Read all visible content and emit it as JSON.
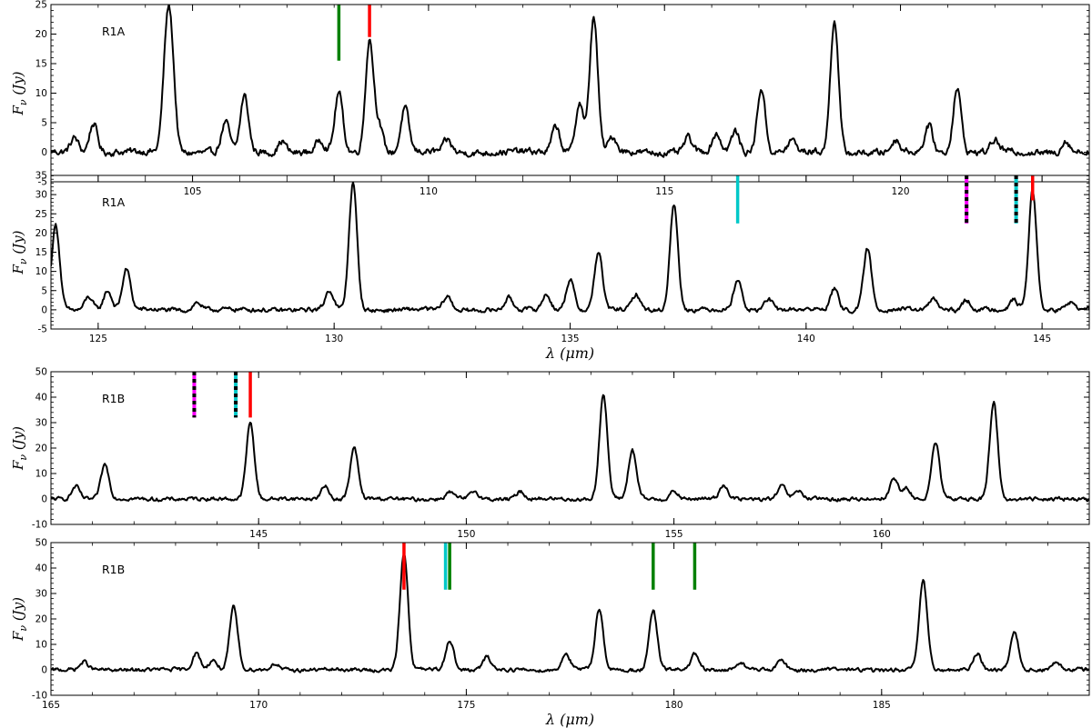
{
  "chart_data": [
    {
      "type": "line",
      "panel_label": "R1A",
      "ylabel": "F_ν (Jy)",
      "xlabel": "",
      "xlim": [
        102.0,
        124.0
      ],
      "ylim": [
        -5,
        25
      ],
      "xticks": [
        105,
        110,
        115,
        120
      ],
      "yticks": [
        -5,
        0,
        5,
        10,
        15,
        20,
        25
      ],
      "baseline_noise": 1.0,
      "peaks": [
        [
          102.5,
          2.5
        ],
        [
          102.9,
          5.0
        ],
        [
          104.45,
          15.5
        ],
        [
          104.55,
          14.0
        ],
        [
          105.7,
          5.0
        ],
        [
          106.1,
          9.5
        ],
        [
          106.9,
          2.0
        ],
        [
          107.7,
          2.0
        ],
        [
          108.1,
          10.0
        ],
        [
          108.75,
          19.0
        ],
        [
          108.95,
          4.5
        ],
        [
          109.5,
          7.5
        ],
        [
          110.4,
          2.0
        ],
        [
          112.7,
          4.5
        ],
        [
          113.2,
          8.5
        ],
        [
          113.5,
          23.0
        ],
        [
          113.9,
          2.5
        ],
        [
          115.5,
          2.5
        ],
        [
          116.1,
          3.0
        ],
        [
          116.5,
          3.5
        ],
        [
          117.05,
          11.0
        ],
        [
          117.7,
          2.0
        ],
        [
          118.6,
          22.5
        ],
        [
          119.9,
          2.0
        ],
        [
          120.6,
          4.5
        ],
        [
          121.2,
          11.0
        ],
        [
          122.0,
          2.0
        ],
        [
          123.5,
          2.0
        ]
      ],
      "markers": [
        {
          "x": 108.1,
          "y0": 15.5,
          "y1": 25,
          "style": "solid",
          "colors": [
            "#008000"
          ]
        },
        {
          "x": 108.75,
          "y0": 19.5,
          "y1": 25,
          "style": "solid",
          "colors": [
            "#ff0000"
          ]
        }
      ]
    },
    {
      "type": "line",
      "panel_label": "R1A",
      "ylabel": "F_ν (Jy)",
      "xlabel": "λ (μm)",
      "xlim": [
        124.0,
        146.0
      ],
      "ylim": [
        -5,
        35
      ],
      "xticks": [
        125,
        130,
        135,
        140,
        145
      ],
      "yticks": [
        -5,
        0,
        5,
        10,
        15,
        20,
        25,
        30,
        35
      ],
      "baseline_noise": 1.0,
      "peaks": [
        [
          124.1,
          22.0
        ],
        [
          124.8,
          3.5
        ],
        [
          125.2,
          5.0
        ],
        [
          125.6,
          10.5
        ],
        [
          127.1,
          2.0
        ],
        [
          129.9,
          5.0
        ],
        [
          130.4,
          33.0
        ],
        [
          132.4,
          3.5
        ],
        [
          133.7,
          3.0
        ],
        [
          134.5,
          4.0
        ],
        [
          135.0,
          8.0
        ],
        [
          135.6,
          15.0
        ],
        [
          136.4,
          4.0
        ],
        [
          137.2,
          27.5
        ],
        [
          138.55,
          8.0
        ],
        [
          139.2,
          3.0
        ],
        [
          140.6,
          5.5
        ],
        [
          141.3,
          16.0
        ],
        [
          142.7,
          3.0
        ],
        [
          143.4,
          2.5
        ],
        [
          144.4,
          2.5
        ],
        [
          144.8,
          31.0
        ],
        [
          145.6,
          2.0
        ]
      ],
      "markers": [
        {
          "x": 138.55,
          "y0": 22.5,
          "y1": 35,
          "style": "solid",
          "colors": [
            "#00c8c8"
          ]
        },
        {
          "x": 143.4,
          "y0": 22.5,
          "y1": 35,
          "style": "dashed",
          "colors": [
            "#ff00ff",
            "#000000"
          ]
        },
        {
          "x": 144.45,
          "y0": 22.5,
          "y1": 35,
          "style": "dashed",
          "colors": [
            "#00c8c8",
            "#000000"
          ]
        },
        {
          "x": 144.8,
          "y0": 28.5,
          "y1": 35,
          "style": "solid",
          "colors": [
            "#ff0000"
          ]
        }
      ]
    },
    {
      "type": "line",
      "panel_label": "R1B",
      "ylabel": "F_ν (Jy)",
      "xlabel": "",
      "xlim": [
        140.0,
        165.0
      ],
      "ylim": [
        -10,
        50
      ],
      "xticks": [
        145,
        150,
        155,
        160
      ],
      "yticks": [
        -10,
        0,
        10,
        20,
        30,
        40,
        50
      ],
      "baseline_noise": 1.3,
      "peaks": [
        [
          140.6,
          5.0
        ],
        [
          141.3,
          13.5
        ],
        [
          144.8,
          30.0
        ],
        [
          146.6,
          5.0
        ],
        [
          147.3,
          20.0
        ],
        [
          149.6,
          2.5
        ],
        [
          150.2,
          3.0
        ],
        [
          151.3,
          3.0
        ],
        [
          153.3,
          41.0
        ],
        [
          154.0,
          19.0
        ],
        [
          155.0,
          3.0
        ],
        [
          156.2,
          5.5
        ],
        [
          157.6,
          5.0
        ],
        [
          158.0,
          3.0
        ],
        [
          160.3,
          8.0
        ],
        [
          160.6,
          4.0
        ],
        [
          161.3,
          22.0
        ],
        [
          162.7,
          38.0
        ]
      ],
      "markers": [
        {
          "x": 143.45,
          "y0": 32,
          "y1": 50,
          "style": "dashed",
          "colors": [
            "#ff00ff",
            "#000000"
          ]
        },
        {
          "x": 144.45,
          "y0": 32,
          "y1": 50,
          "style": "dashed",
          "colors": [
            "#00c8c8",
            "#000000"
          ]
        },
        {
          "x": 144.8,
          "y0": 32,
          "y1": 50,
          "style": "solid",
          "colors": [
            "#ff0000"
          ]
        }
      ]
    },
    {
      "type": "line",
      "panel_label": "R1B",
      "ylabel": "F_ν (Jy)",
      "xlabel": "λ (μm)",
      "xlim": [
        165.0,
        190.0
      ],
      "ylim": [
        -10,
        50
      ],
      "xticks": [
        165,
        170,
        175,
        180,
        185
      ],
      "yticks": [
        -10,
        0,
        10,
        20,
        30,
        40,
        50
      ],
      "baseline_noise": 1.3,
      "peaks": [
        [
          165.8,
          3.0
        ],
        [
          168.5,
          6.5
        ],
        [
          168.9,
          4.0
        ],
        [
          169.4,
          24.5
        ],
        [
          170.4,
          2.5
        ],
        [
          173.5,
          46.0
        ],
        [
          174.6,
          12.0
        ],
        [
          175.5,
          5.0
        ],
        [
          177.4,
          6.5
        ],
        [
          178.2,
          24.0
        ],
        [
          179.5,
          23.0
        ],
        [
          180.5,
          6.0
        ],
        [
          181.6,
          3.0
        ],
        [
          182.6,
          4.0
        ],
        [
          186.0,
          35.0
        ],
        [
          187.3,
          6.5
        ],
        [
          188.2,
          15.0
        ],
        [
          189.2,
          3.0
        ]
      ],
      "markers": [
        {
          "x": 173.5,
          "y0": 31.5,
          "y1": 50,
          "style": "solid",
          "colors": [
            "#ff0000"
          ]
        },
        {
          "x": 174.5,
          "y0": 31.5,
          "y1": 50,
          "style": "solid",
          "colors": [
            "#00c8c8"
          ]
        },
        {
          "x": 174.6,
          "y0": 31.5,
          "y1": 50,
          "style": "solid",
          "colors": [
            "#008000"
          ]
        },
        {
          "x": 179.5,
          "y0": 31.5,
          "y1": 50,
          "style": "solid",
          "colors": [
            "#008000"
          ]
        },
        {
          "x": 180.5,
          "y0": 31.5,
          "y1": 50,
          "style": "solid",
          "colors": [
            "#008000"
          ]
        }
      ]
    }
  ]
}
